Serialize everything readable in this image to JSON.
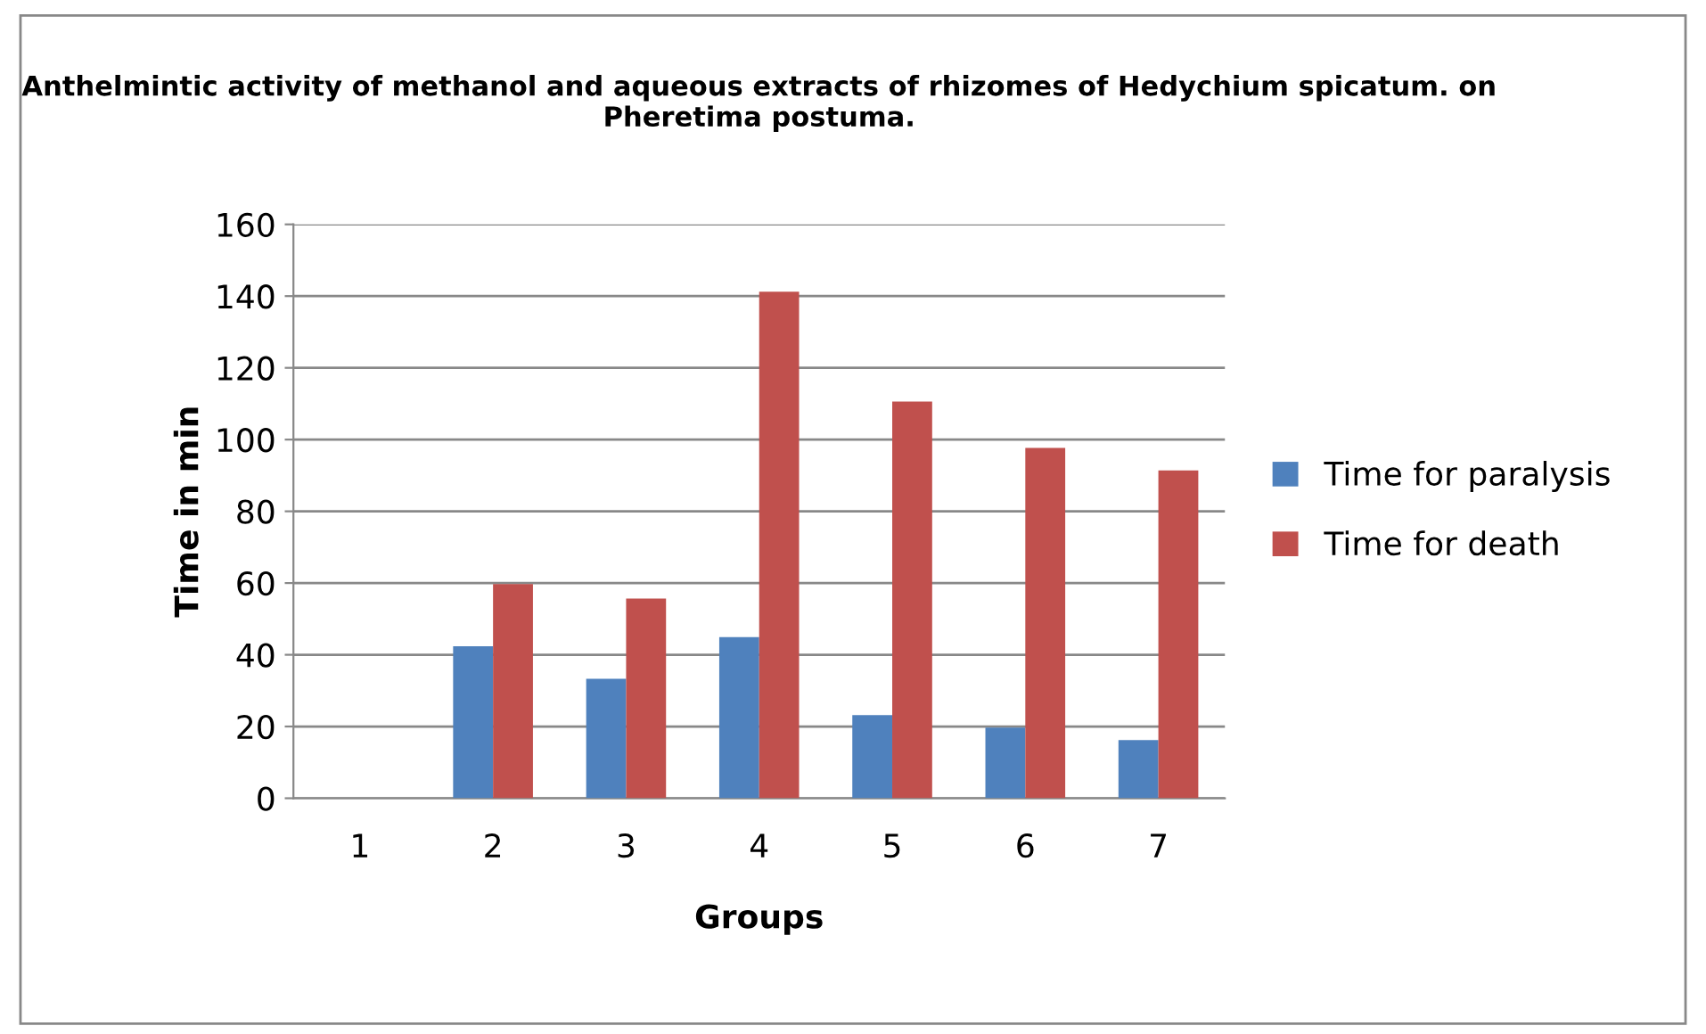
{
  "chart_data": {
    "type": "bar",
    "title": "Anthelmintic activity of methanol and aqueous extracts of rhizomes of Hedychium spicatum. on Pheretima postuma.",
    "xlabel": "Groups",
    "ylabel": "Time in min",
    "categories": [
      "1",
      "2",
      "3",
      "4",
      "5",
      "6",
      "7"
    ],
    "series": [
      {
        "name": "Time for paralysis",
        "color": "#4f81bd",
        "values": [
          0,
          42.4,
          33.3,
          44.9,
          23.2,
          19.7,
          16.2
        ]
      },
      {
        "name": "Time for death",
        "color": "#c0504d",
        "values": [
          0,
          59.7,
          55.7,
          141.2,
          110.6,
          97.7,
          91.4
        ]
      }
    ],
    "ylim": [
      0,
      160
    ],
    "yticks": [
      0,
      20,
      40,
      60,
      80,
      100,
      120,
      140,
      160
    ],
    "grid": "y",
    "legend": "right"
  }
}
